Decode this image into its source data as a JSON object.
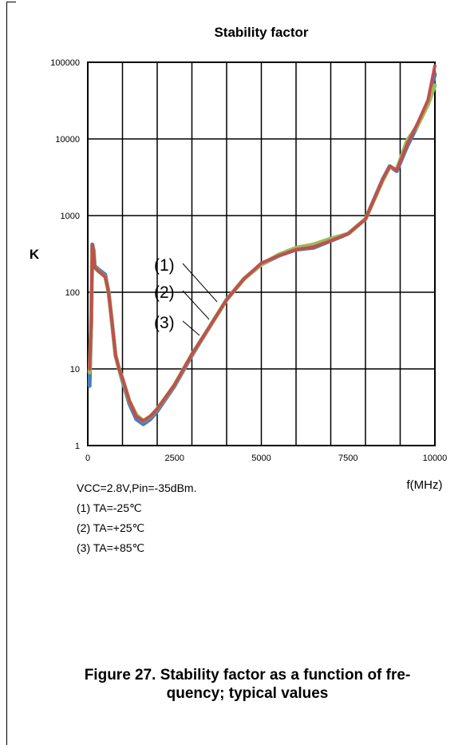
{
  "chart_data": {
    "type": "line",
    "title": "Stability factor",
    "xlabel": "f(MHz)",
    "ylabel": "K",
    "xlim": [
      0,
      10000
    ],
    "ylim": [
      1,
      100000
    ],
    "yscale": "log",
    "grid": true,
    "x_ticks": [
      "0",
      "2500",
      "5000",
      "7500",
      "10000"
    ],
    "y_ticks": [
      "1",
      "10",
      "100",
      "1000",
      "10000",
      "100000"
    ],
    "series_labels": [
      "(1)",
      "(2)",
      "(3)"
    ],
    "series": [
      {
        "color": "#4a7ebb",
        "points": [
          [
            50,
            6
          ],
          [
            100,
            40
          ],
          [
            130,
            420
          ],
          [
            170,
            350
          ],
          [
            200,
            220
          ],
          [
            300,
            200
          ],
          [
            500,
            170
          ],
          [
            600,
            100
          ],
          [
            700,
            40
          ],
          [
            800,
            15
          ],
          [
            900,
            10
          ],
          [
            1000,
            7
          ],
          [
            1200,
            3.5
          ],
          [
            1400,
            2.2
          ],
          [
            1600,
            1.9
          ],
          [
            1800,
            2.2
          ],
          [
            2000,
            2.8
          ],
          [
            2200,
            3.8
          ],
          [
            2500,
            6
          ],
          [
            3000,
            15
          ],
          [
            3500,
            35
          ],
          [
            4000,
            80
          ],
          [
            4500,
            150
          ],
          [
            5000,
            230
          ],
          [
            5500,
            300
          ],
          [
            6000,
            360
          ],
          [
            6500,
            380
          ],
          [
            7000,
            470
          ],
          [
            7500,
            580
          ],
          [
            8000,
            900
          ],
          [
            8500,
            3000
          ],
          [
            8700,
            4400
          ],
          [
            8900,
            3800
          ],
          [
            9200,
            8000
          ],
          [
            9500,
            15000
          ],
          [
            9800,
            30000
          ],
          [
            10000,
            70000
          ]
        ]
      },
      {
        "color": "#9bbb59",
        "points": [
          [
            50,
            9
          ],
          [
            100,
            40
          ],
          [
            130,
            400
          ],
          [
            170,
            340
          ],
          [
            200,
            210
          ],
          [
            300,
            190
          ],
          [
            500,
            160
          ],
          [
            600,
            100
          ],
          [
            700,
            40
          ],
          [
            800,
            15
          ],
          [
            900,
            10
          ],
          [
            1000,
            7.5
          ],
          [
            1200,
            3.8
          ],
          [
            1400,
            2.5
          ],
          [
            1600,
            2.1
          ],
          [
            1800,
            2.4
          ],
          [
            2000,
            3
          ],
          [
            2200,
            4
          ],
          [
            2500,
            6.2
          ],
          [
            3000,
            15.5
          ],
          [
            3500,
            35
          ],
          [
            4000,
            80
          ],
          [
            4500,
            150
          ],
          [
            5000,
            230
          ],
          [
            5500,
            310
          ],
          [
            6000,
            380
          ],
          [
            6500,
            420
          ],
          [
            7000,
            500
          ],
          [
            7500,
            580
          ],
          [
            8000,
            900
          ],
          [
            8500,
            2900
          ],
          [
            8700,
            4300
          ],
          [
            8900,
            4000
          ],
          [
            9200,
            9500
          ],
          [
            9500,
            15000
          ],
          [
            9800,
            28000
          ],
          [
            10000,
            50000
          ]
        ]
      },
      {
        "color": "#c0504d",
        "points": [
          [
            50,
            10
          ],
          [
            100,
            40
          ],
          [
            130,
            410
          ],
          [
            170,
            340
          ],
          [
            200,
            210
          ],
          [
            300,
            190
          ],
          [
            500,
            160
          ],
          [
            600,
            100
          ],
          [
            700,
            40
          ],
          [
            800,
            15
          ],
          [
            900,
            10
          ],
          [
            1000,
            7.5
          ],
          [
            1200,
            3.8
          ],
          [
            1400,
            2.4
          ],
          [
            1600,
            2.1
          ],
          [
            1800,
            2.4
          ],
          [
            2000,
            3
          ],
          [
            2200,
            4
          ],
          [
            2500,
            6.2
          ],
          [
            3000,
            15.5
          ],
          [
            3500,
            35
          ],
          [
            4000,
            80
          ],
          [
            4500,
            150
          ],
          [
            5000,
            240
          ],
          [
            5500,
            300
          ],
          [
            6000,
            360
          ],
          [
            6500,
            390
          ],
          [
            7000,
            470
          ],
          [
            7500,
            580
          ],
          [
            8000,
            900
          ],
          [
            8500,
            3000
          ],
          [
            8700,
            4400
          ],
          [
            8900,
            3900
          ],
          [
            9200,
            8500
          ],
          [
            9500,
            16000
          ],
          [
            9800,
            32000
          ],
          [
            10000,
            90000
          ]
        ]
      }
    ]
  },
  "conditions": [
    "VCC=2.8V,Pin=-35dBm.",
    "(1) TA=-25℃",
    "(2) TA=+25℃",
    "(3) TA=+85℃"
  ],
  "caption_line1": "Figure 27. Stability factor as a function of fre-",
  "caption_line2": "quency; typical values"
}
